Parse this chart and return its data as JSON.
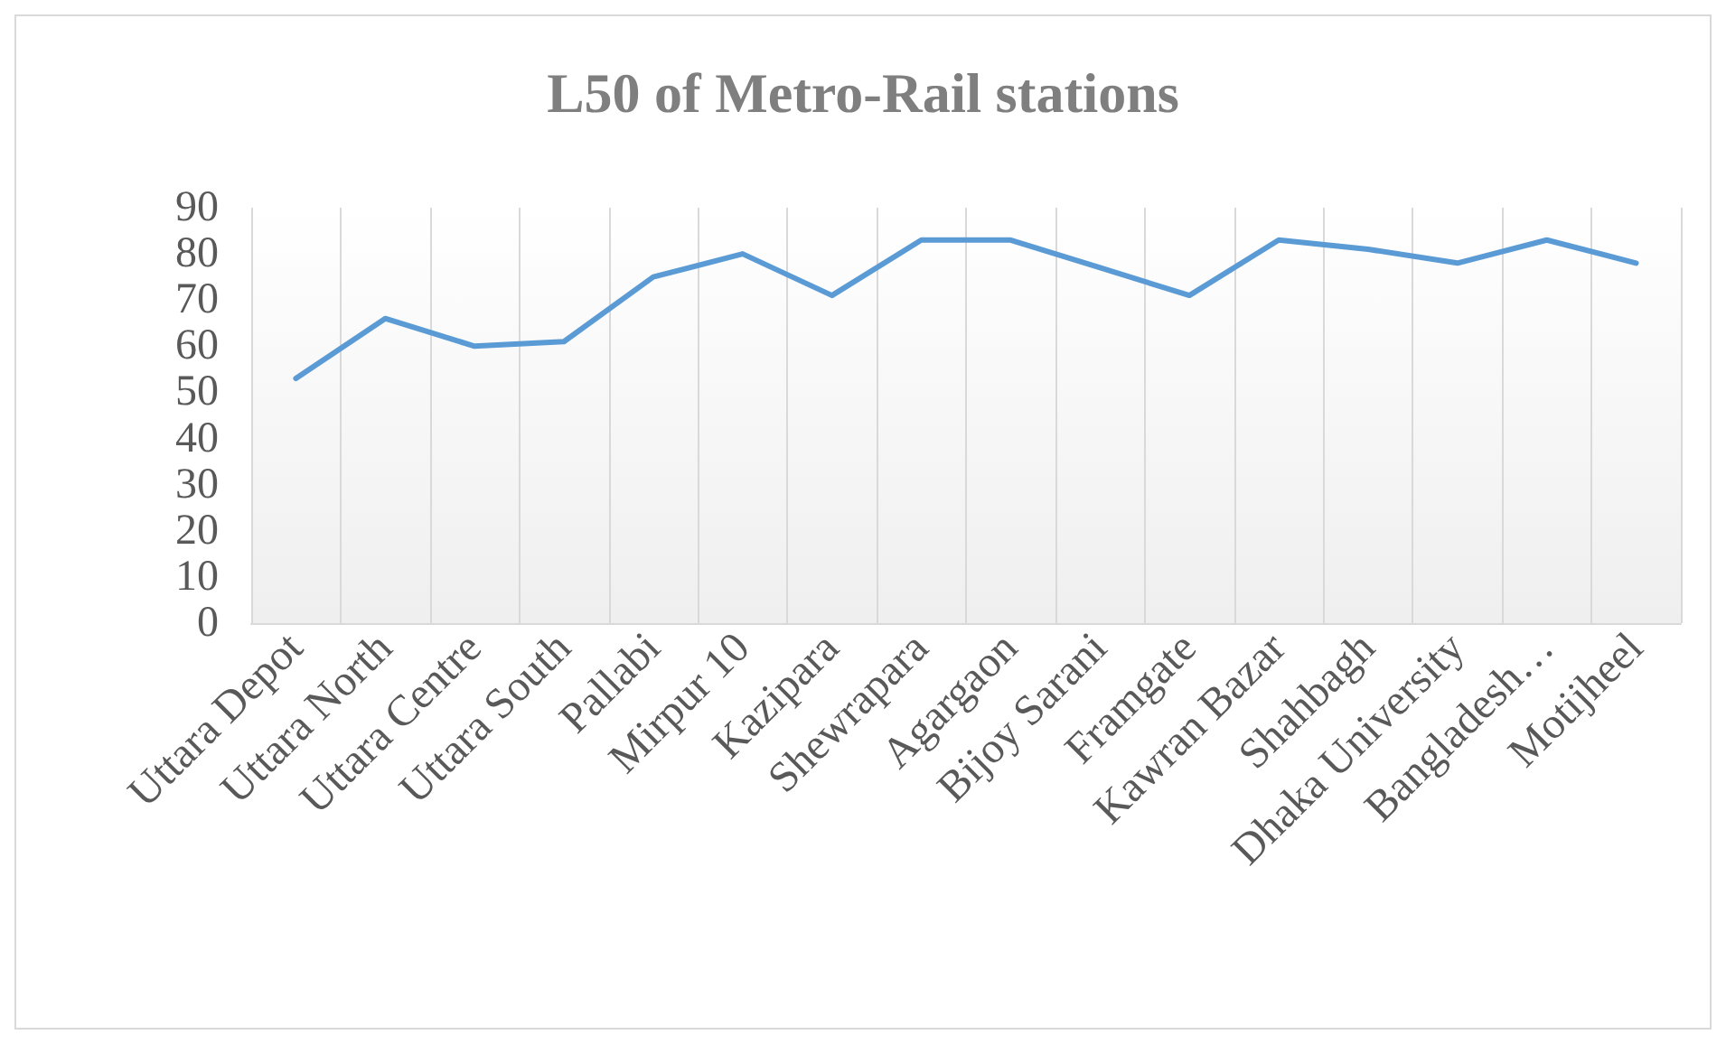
{
  "chart_data": {
    "type": "line",
    "title": "L50 of Metro-Rail stations",
    "categories": [
      "Uttara Depot",
      "Uttara North",
      "Uttara Centre",
      "Uttara South",
      "Pallabi",
      "Mirpur 10",
      "Kazipara",
      "Shewrapara",
      "Agargaon",
      "Bijoy Sarani",
      "Framgate",
      "Kawran Bazar",
      "Shahbagh",
      "Dhaka University",
      "Bangladesh…",
      "Motijheel"
    ],
    "series": [
      {
        "color": "#5b9bd5",
        "values": [
          53,
          66,
          60,
          61,
          75,
          80,
          71,
          83,
          83,
          77,
          71,
          83,
          81,
          78,
          83,
          78
        ]
      }
    ],
    "ylim": [
      0,
      90
    ],
    "yticks": [
      0,
      10,
      20,
      30,
      40,
      50,
      60,
      70,
      80,
      90
    ],
    "grid": "x",
    "marker": "none",
    "line_style": "solid"
  }
}
